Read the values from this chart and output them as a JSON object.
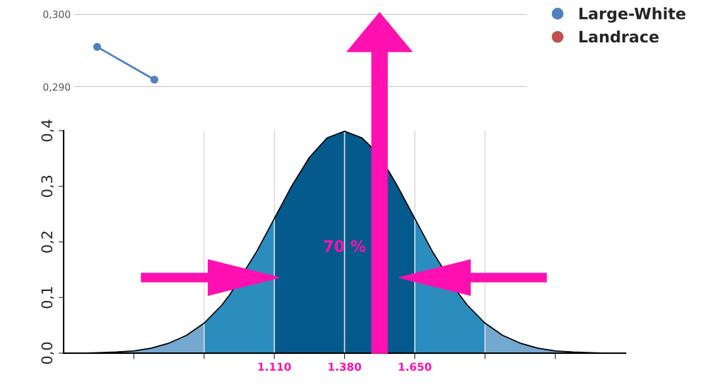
{
  "chart_data": [
    {
      "type": "line",
      "categories": [
        null,
        null,
        null,
        null,
        null,
        null,
        null,
        null
      ],
      "series": [
        {
          "name": "Large-White",
          "color": "#4f81bd",
          "values": [
            0.2955,
            0.291,
            null,
            null,
            null,
            null,
            null,
            null
          ]
        },
        {
          "name": "Landrace",
          "color": "#c0504d",
          "values": [
            null,
            null,
            null,
            null,
            null,
            null,
            null,
            null
          ]
        }
      ],
      "ylim": [
        0.29,
        0.3
      ],
      "yticks": [
        {
          "value": 0.29,
          "label": "0,290"
        },
        {
          "value": 0.3,
          "label": "0,300"
        }
      ],
      "grid": "y",
      "legend": "top right",
      "marker": "circle",
      "tick_labels": "y"
    },
    {
      "type": "area",
      "series": [
        {
          "color": "#74a9cf",
          "x": [
            300,
            367.5,
            435,
            502.5,
            570,
            637.5,
            705,
            772.5,
            840
          ],
          "values": [
            0,
            0,
            0.001,
            0.002,
            0.004,
            0.009,
            0.018,
            0.032,
            0.054
          ]
        },
        {
          "color": "#2b8cbe",
          "x": [
            840,
            907.5,
            940,
            1042.5,
            1110
          ],
          "values": [
            0.054,
            0.086,
            0.106,
            0.183,
            0.242
          ]
        },
        {
          "color": "#045a8d",
          "x": [
            1110,
            1177.5,
            1245,
            1312.5,
            1380,
            1447.5,
            1480,
            1550,
            1582.5,
            1650
          ],
          "values": [
            0.242,
            0.301,
            0.352,
            0.387,
            0.399,
            0.387,
            0.372,
            0.327,
            0.301,
            0.242
          ]
        },
        {
          "color": "#2b8cbe",
          "x": [
            1650,
            1717.5,
            1820,
            1852.5,
            1920
          ],
          "values": [
            0.242,
            0.183,
            0.106,
            0.086,
            0.054
          ]
        },
        {
          "color": "#74a9cf",
          "x": [
            1920,
            1987.5,
            2055,
            2122.5,
            2190,
            2257.5,
            2325,
            2392.5,
            2460
          ],
          "values": [
            0.054,
            0.032,
            0.018,
            0.009,
            0.004,
            0.002,
            0.001,
            0,
            0
          ]
        }
      ],
      "xlim": [
        300,
        2460
      ],
      "xticks": [
        {
          "value": 570,
          "label": null
        },
        {
          "value": 840,
          "label": null
        },
        {
          "value": 1110,
          "label": "1.110"
        },
        {
          "value": 1380,
          "label": "1.380"
        },
        {
          "value": 1650,
          "label": "1.650"
        },
        {
          "value": 1920,
          "label": null
        },
        {
          "value": 2190,
          "label": null
        }
      ],
      "ylim": [
        0,
        0.4
      ],
      "yticks": [
        {
          "value": 0,
          "label": "0,0"
        },
        {
          "value": 0.1,
          "label": "0,1"
        },
        {
          "value": 0.2,
          "label": "0,2"
        },
        {
          "value": 0.3,
          "label": "0,3"
        },
        {
          "value": 0.4,
          "label": "0,4"
        }
      ],
      "ref_lines": [
        {
          "axis": "x",
          "value": 840,
          "color": "#dddddd"
        },
        {
          "axis": "x",
          "value": 1110,
          "color": "#dddddd"
        },
        {
          "axis": "x",
          "value": 1380,
          "color": "#dddddd"
        },
        {
          "axis": "x",
          "value": 1650,
          "color": "#dddddd"
        },
        {
          "axis": "x",
          "value": 1920,
          "color": "#dddddd"
        }
      ],
      "annotations": [
        {
          "text": "70 %",
          "x": 1380,
          "y": 0.19
        }
      ]
    }
  ]
}
